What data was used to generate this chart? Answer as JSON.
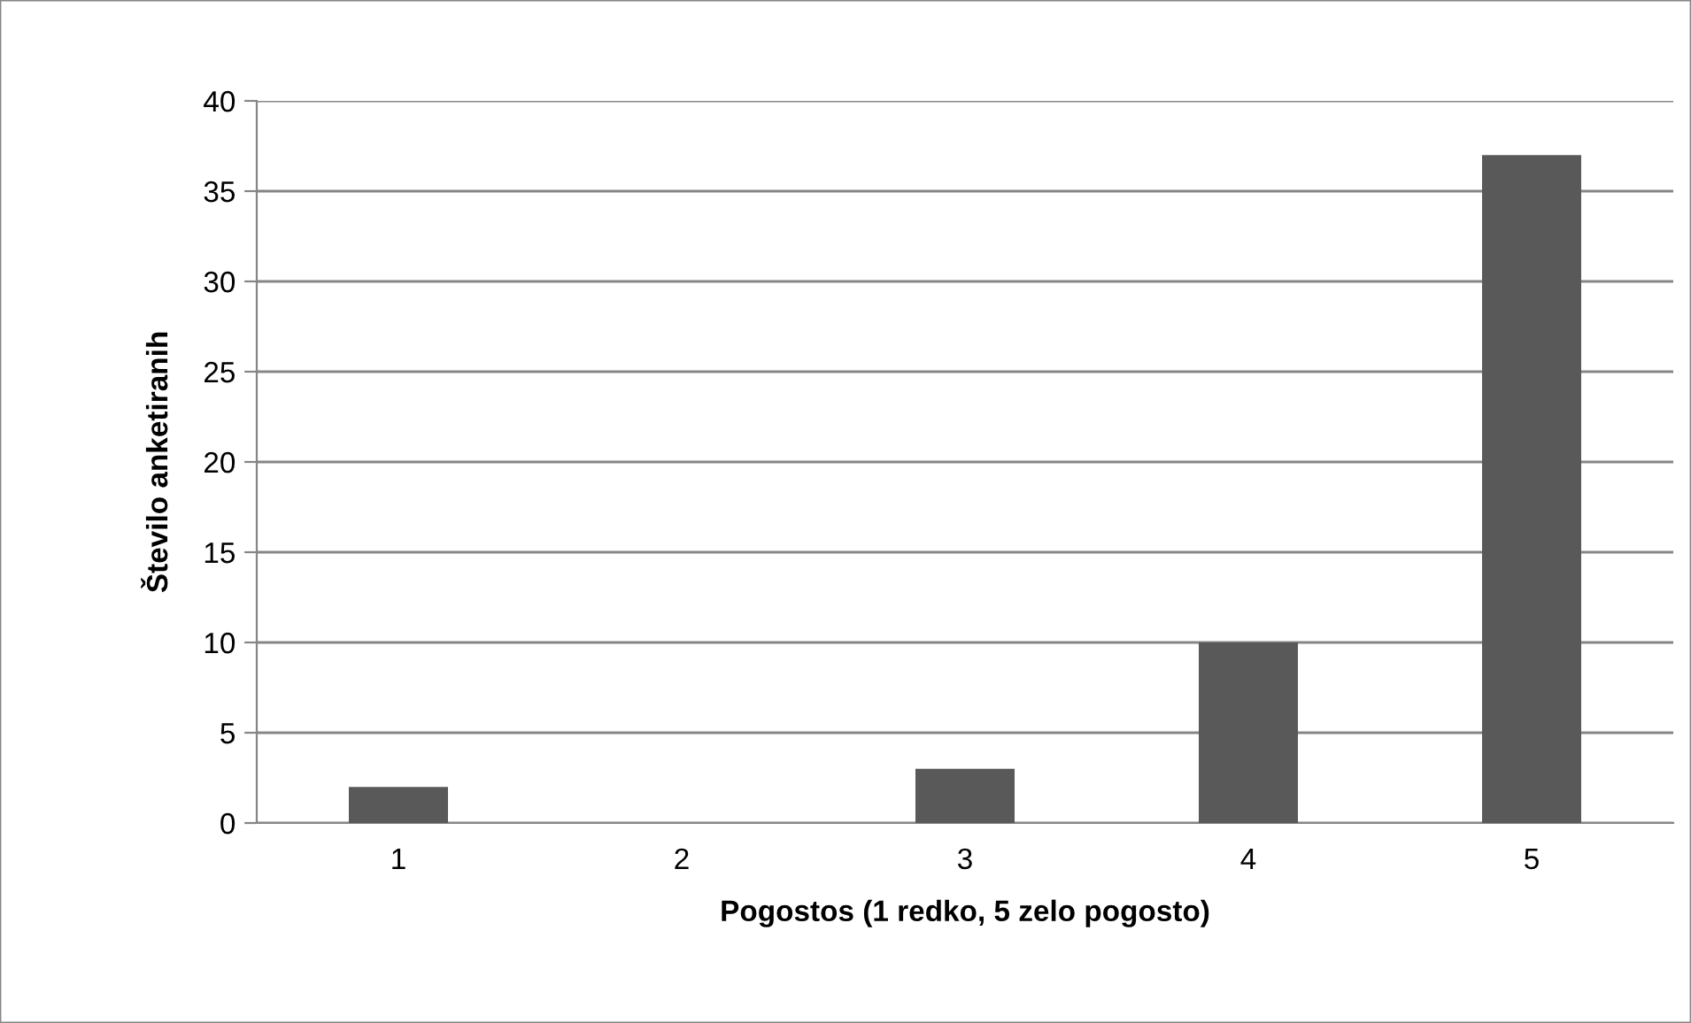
{
  "chart_data": {
    "type": "bar",
    "xlabel": "Pogostos (1 redko, 5 zelo pogosto)",
    "ylabel": "Število anketiranih",
    "categories": [
      "1",
      "2",
      "3",
      "4",
      "5"
    ],
    "values": [
      2,
      0,
      3,
      10,
      37
    ],
    "color": "#595959",
    "ylim": [
      0,
      40
    ],
    "yticks": [
      0,
      5,
      10,
      15,
      20,
      25,
      30,
      35,
      40
    ],
    "grid": "y"
  }
}
